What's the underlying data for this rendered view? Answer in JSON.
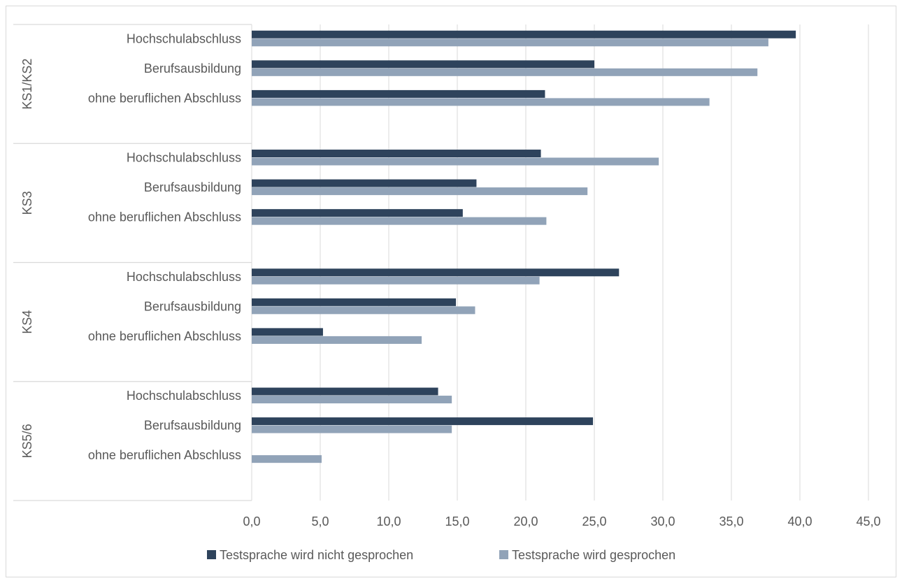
{
  "chart_data": {
    "type": "bar",
    "orientation": "horizontal",
    "title": "",
    "xlabel": "",
    "ylabel": "",
    "xlim": [
      0,
      45
    ],
    "x_ticks": [
      "0,0",
      "5,0",
      "10,0",
      "15,0",
      "20,0",
      "25,0",
      "30,0",
      "35,0",
      "40,0",
      "45,0"
    ],
    "grid": "vertical",
    "legend_position": "bottom",
    "groups": [
      {
        "label": "KS1/KS2",
        "categories": [
          {
            "label": "Hochschulabschluss",
            "values": [
              39.7,
              37.7
            ]
          },
          {
            "label": "Berufsausbildung",
            "values": [
              25.0,
              36.9
            ]
          },
          {
            "label": "ohne beruflichen Abschluss",
            "values": [
              21.4,
              33.4
            ]
          }
        ]
      },
      {
        "label": "KS3",
        "categories": [
          {
            "label": "Hochschulabschluss",
            "values": [
              21.1,
              29.7
            ]
          },
          {
            "label": "Berufsausbildung",
            "values": [
              16.4,
              24.5
            ]
          },
          {
            "label": "ohne beruflichen Abschluss",
            "values": [
              15.4,
              21.5
            ]
          }
        ]
      },
      {
        "label": "KS4",
        "categories": [
          {
            "label": "Hochschulabschluss",
            "values": [
              26.8,
              21.0
            ]
          },
          {
            "label": "Berufsausbildung",
            "values": [
              14.9,
              16.3
            ]
          },
          {
            "label": "ohne beruflichen Abschluss",
            "values": [
              5.2,
              12.4
            ]
          }
        ]
      },
      {
        "label": "KS5/6",
        "categories": [
          {
            "label": "Hochschulabschluss",
            "values": [
              13.6,
              14.6
            ]
          },
          {
            "label": "Berufsausbildung",
            "values": [
              24.9,
              14.6
            ]
          },
          {
            "label": "ohne beruflichen Abschluss",
            "values": [
              null,
              5.1
            ]
          }
        ]
      }
    ],
    "series": [
      {
        "name": "Testsprache wird nicht gesprochen",
        "color": "#2e435c"
      },
      {
        "name": "Testsprache wird gesprochen",
        "color": "#91a3b8"
      }
    ]
  }
}
